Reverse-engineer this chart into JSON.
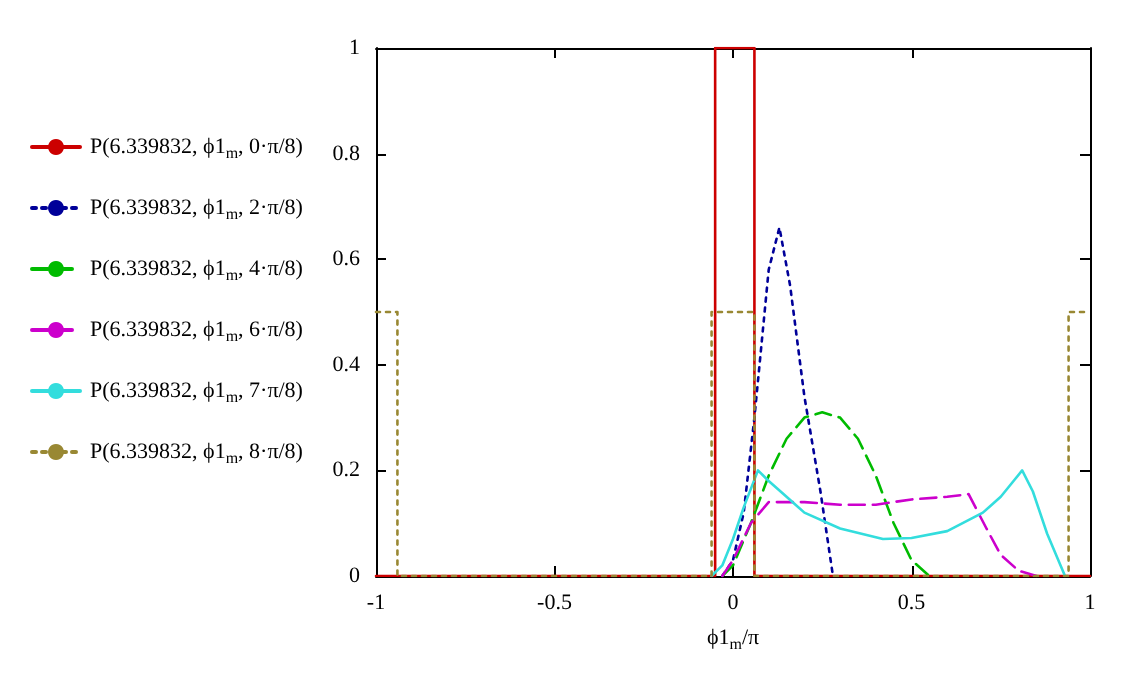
{
  "chart_data": {
    "type": "line",
    "xlabel": "ϕ1$_{m}$/π",
    "xlim": [
      -1,
      1
    ],
    "xticks": [
      -1,
      -0.5,
      0,
      0.5,
      1
    ],
    "ylim": [
      0,
      1
    ],
    "yticks": [
      0,
      0.2,
      0.4,
      0.6,
      0.8,
      1
    ],
    "grid": false,
    "legend": "left",
    "marker": "none",
    "series": [
      {
        "name": "P(6.339832, ϕ1$_{m}$, 0·π/8)",
        "color": "#cc0000",
        "line_style": "solid",
        "x": [
          -1,
          -0.05,
          -0.05,
          0.06,
          0.06,
          1
        ],
        "values": [
          0,
          0,
          1,
          1,
          0,
          0
        ]
      },
      {
        "name": "P(6.339832, ϕ1$_{m}$, 2·π/8)",
        "color": "#000099",
        "line_style": "dotted",
        "x": [
          -0.03,
          0,
          0.03,
          0.06,
          0.1,
          0.13,
          0.16,
          0.2,
          0.245,
          0.28
        ],
        "values": [
          0,
          0.03,
          0.12,
          0.3,
          0.58,
          0.66,
          0.55,
          0.34,
          0.16,
          0
        ]
      },
      {
        "name": "P(6.339832, ϕ1$_{m}$, 4·π/8)",
        "color": "#00bb00",
        "line_style": "dashed",
        "x": [
          -0.03,
          0,
          0.05,
          0.1,
          0.15,
          0.2,
          0.25,
          0.3,
          0.35,
          0.4,
          0.45,
          0.5,
          0.55
        ],
        "values": [
          0,
          0.02,
          0.1,
          0.19,
          0.26,
          0.3,
          0.31,
          0.3,
          0.26,
          0.19,
          0.1,
          0.03,
          0
        ]
      },
      {
        "name": "P(6.339832, ϕ1$_{m}$, 6·π/8)",
        "color": "#cc00cc",
        "line_style": "dashed",
        "x": [
          -0.03,
          0,
          0.05,
          0.1,
          0.2,
          0.3,
          0.4,
          0.5,
          0.6,
          0.66,
          0.71,
          0.75,
          0.8,
          0.85
        ],
        "values": [
          0,
          0.03,
          0.1,
          0.14,
          0.14,
          0.135,
          0.135,
          0.145,
          0.15,
          0.155,
          0.09,
          0.04,
          0.01,
          0
        ]
      },
      {
        "name": "P(6.339832, ϕ1$_{m}$, 7·π/8)",
        "color": "#33dddd",
        "line_style": "solid",
        "x": [
          -0.06,
          -0.03,
          0,
          0.03,
          0.07,
          0.1,
          0.15,
          0.2,
          0.3,
          0.42,
          0.5,
          0.6,
          0.7,
          0.75,
          0.81,
          0.84,
          0.88,
          0.93
        ],
        "values": [
          0,
          0.02,
          0.07,
          0.13,
          0.2,
          0.18,
          0.15,
          0.12,
          0.09,
          0.07,
          0.072,
          0.085,
          0.12,
          0.15,
          0.2,
          0.16,
          0.08,
          0
        ]
      },
      {
        "name": "P(6.339832, ϕ1$_{m}$, 8·π/8)",
        "color": "#998833",
        "line_style": "dotted",
        "x": [
          -1,
          -0.94,
          -0.94,
          -0.06,
          -0.06,
          0.06,
          0.06,
          0.94,
          0.94,
          1
        ],
        "values": [
          0.5,
          0.5,
          0,
          0,
          0.5,
          0.5,
          0,
          0,
          0.5,
          0.5
        ]
      }
    ]
  }
}
